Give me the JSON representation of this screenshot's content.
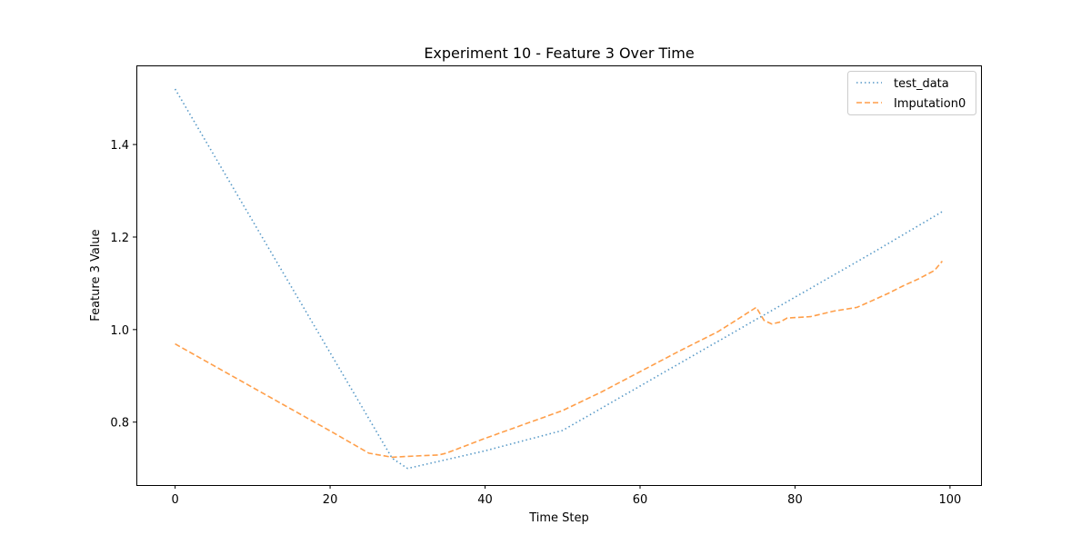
{
  "chart_data": {
    "type": "line",
    "title": "Experiment 10 - Feature 3 Over Time",
    "xlabel": "Time Step",
    "ylabel": "Feature 3 Value",
    "xlim": [
      -5,
      104
    ],
    "ylim": [
      0.664,
      1.571
    ],
    "xticks": [
      0,
      20,
      40,
      60,
      80,
      100
    ],
    "xtick_labels": [
      "0",
      "20",
      "40",
      "60",
      "80",
      "100"
    ],
    "yticks": [
      0.8,
      1.0,
      1.2,
      1.4
    ],
    "ytick_labels": [
      "0.8",
      "1.0",
      "1.2",
      "1.4"
    ],
    "grid": false,
    "legend_position": "top-right",
    "series": [
      {
        "name": "test_data",
        "color": "#1f77b4",
        "dash": "dotted",
        "x": [
          0,
          10,
          20,
          28,
          30,
          40,
          50,
          60,
          70,
          80,
          90,
          99
        ],
        "y": [
          1.52,
          1.235,
          0.95,
          0.722,
          0.7,
          0.738,
          0.782,
          0.878,
          0.974,
          1.07,
          1.166,
          1.255
        ]
      },
      {
        "name": "Imputation0",
        "color": "#ff7f0e",
        "dash": "dashed",
        "x": [
          0,
          5,
          10,
          15,
          20,
          25,
          26,
          28,
          30,
          34,
          35,
          40,
          45,
          50,
          55,
          60,
          65,
          70,
          72,
          75,
          76,
          77,
          78,
          79,
          82,
          85,
          88,
          90,
          92,
          94,
          96,
          98,
          99
        ],
        "y": [
          0.969,
          0.922,
          0.875,
          0.828,
          0.781,
          0.733,
          0.73,
          0.724,
          0.726,
          0.729,
          0.733,
          0.765,
          0.795,
          0.825,
          0.865,
          0.909,
          0.953,
          0.995,
          1.016,
          1.048,
          1.02,
          1.012,
          1.016,
          1.025,
          1.028,
          1.04,
          1.048,
          1.063,
          1.078,
          1.095,
          1.11,
          1.128,
          1.148
        ]
      }
    ]
  }
}
